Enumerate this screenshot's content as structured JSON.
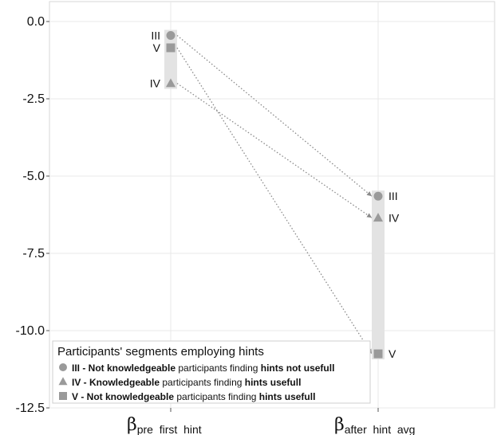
{
  "chart_data": {
    "type": "scatter",
    "y_ticks": [
      0.0,
      -2.5,
      -5.0,
      -7.5,
      -10.0,
      -12.5
    ],
    "y_tick_labels": [
      "0.0",
      "-2.5",
      "-5.0",
      "-7.5",
      "-10.0",
      "-12.5"
    ],
    "ylim": [
      -12.5,
      0.5
    ],
    "grid": true,
    "categories": [
      {
        "id": "pre",
        "symbol": "β",
        "subscript": "pre_first_hint"
      },
      {
        "id": "after",
        "symbol": "β",
        "subscript": "after_hint_avg"
      }
    ],
    "series": [
      {
        "label": "III",
        "shape": "circle",
        "values": [
          -0.45,
          -5.65
        ]
      },
      {
        "label": "IV",
        "shape": "triangle",
        "values": [
          -2.0,
          -6.35
        ]
      },
      {
        "label": "V",
        "shape": "square",
        "values": [
          -0.85,
          -10.75
        ]
      }
    ],
    "legend": {
      "placement": "bottom-left",
      "title": "Participants' segments employing hints",
      "entries": [
        {
          "shape": "circle",
          "parts": [
            {
              "text": "III - Not knowledgeable",
              "bold": true
            },
            {
              "text": " participants finding ",
              "bold": false
            },
            {
              "text": "hints not usefull",
              "bold": true
            }
          ]
        },
        {
          "shape": "triangle",
          "parts": [
            {
              "text": "IV - Knowledgeable",
              "bold": true
            },
            {
              "text": " participants finding ",
              "bold": false
            },
            {
              "text": "hints usefull",
              "bold": true
            }
          ]
        },
        {
          "shape": "square",
          "parts": [
            {
              "text": "V - Not knowledgeable",
              "bold": true
            },
            {
              "text": " participants finding ",
              "bold": false
            },
            {
              "text": "hints usefull",
              "bold": true
            }
          ]
        }
      ]
    },
    "colors": {
      "marker": "#9a9a9a",
      "range_bar": "#e3e3e3",
      "arrow": "#8a8a8a",
      "grid": "#e9e9e9",
      "legend_border": "#cfcfcf"
    }
  }
}
